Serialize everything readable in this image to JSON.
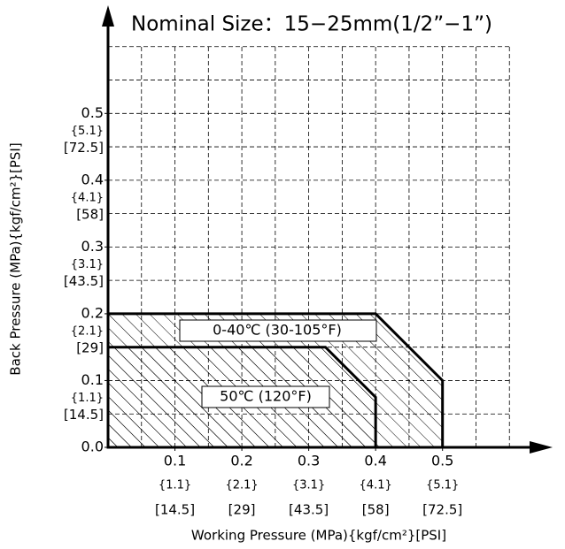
{
  "chart_data": {
    "type": "area",
    "title": "Nominal Size：15−25mm(1/2”−1”)",
    "xlabel": "Working Pressure (MPa){kgf/cm²}[PSI]",
    "ylabel": "Back Pressure (MPa){kgf/cm²}[PSI]",
    "xlim": [
      0,
      0.65
    ],
    "ylim": [
      0,
      0.65
    ],
    "xticks": [
      0.1,
      0.2,
      0.3,
      0.4,
      0.5
    ],
    "xtick_kgf": [
      "{1.1}",
      "{2.1}",
      "{3.1}",
      "{4.1}",
      "{5.1}"
    ],
    "xtick_psi": [
      "[14.5]",
      "[29]",
      "[43.5]",
      "[58]",
      "[72.5]"
    ],
    "yticks": [
      {
        "value": 0,
        "label": "0.0"
      },
      0.1,
      0.2,
      0.3,
      0.4,
      0.5
    ],
    "ytick_kgf": [
      null,
      "{1.1}",
      "{2.1}",
      "{3.1}",
      "{4.1}",
      "{5.1}"
    ],
    "ytick_psi": [
      null,
      "[14.5]",
      "[29]",
      "[43.5]",
      "[58]",
      "[72.5]"
    ],
    "xgrid": [
      0.05,
      0.1,
      0.15,
      0.2,
      0.25,
      0.3,
      0.35,
      0.4,
      0.45,
      0.5,
      0.55,
      0.6
    ],
    "ygrid": [
      0.05,
      0.1,
      0.15,
      0.2,
      0.25,
      0.3,
      0.35,
      0.4,
      0.45,
      0.5,
      0.55,
      0.6
    ],
    "grid": true,
    "series": [
      {
        "name": "0-40℃ (30-105°F)",
        "x": [
          0,
          0.4,
          0.5,
          0.5
        ],
        "y": [
          0.2,
          0.2,
          0.1,
          0
        ]
      },
      {
        "name": "50℃ (120°F)",
        "x": [
          0,
          0.325,
          0.4,
          0.4
        ],
        "y": [
          0.15,
          0.15,
          0.075,
          0
        ]
      }
    ]
  }
}
